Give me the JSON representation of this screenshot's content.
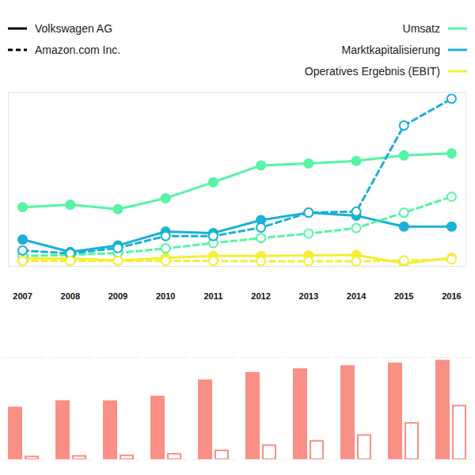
{
  "chart_data": [
    {
      "type": "line",
      "x": [
        2007,
        2008,
        2009,
        2010,
        2011,
        2012,
        2013,
        2014,
        2015,
        2016
      ],
      "xlim": [
        2006.7,
        2016.3
      ],
      "xticks": [
        2007,
        2008,
        2009,
        2010,
        2011,
        2012,
        2013,
        2014,
        2015,
        2016
      ],
      "ylim": [
        -10,
        340
      ],
      "yticks": [],
      "tick_labels": "x",
      "grid": false,
      "legend": "top",
      "groups": [
        {
          "name": "Volkswagen AG",
          "line_style": "solid",
          "marker": "filled"
        },
        {
          "name": "Amazon.com Inc.",
          "line_style": "dashed",
          "marker": "open"
        }
      ],
      "series": [
        {
          "name": "Umsatz",
          "group": "Volkswagen AG",
          "color": "#55f5a5",
          "values": [
            109,
            114,
            105,
            127,
            159,
            193,
            197,
            202,
            213,
            217
          ]
        },
        {
          "name": "Marktkapitalisierung",
          "group": "Volkswagen AG",
          "color": "#1cb0d6",
          "values": [
            44,
            19,
            32,
            60,
            57,
            83,
            98,
            92,
            70,
            70
          ]
        },
        {
          "name": "Operatives Ergebnis (EBIT)",
          "group": "Volkswagen AG",
          "color": "#f5ee3a",
          "values": [
            6,
            6,
            2,
            7,
            11,
            11,
            12,
            13,
            -4,
            7
          ]
        },
        {
          "name": "Umsatz",
          "group": "Amazon.com Inc.",
          "color": "#55f5a5",
          "values": [
            11,
            13,
            17,
            26,
            37,
            47,
            56,
            67,
            98,
            130
          ]
        },
        {
          "name": "Marktkapitalisierung",
          "group": "Amazon.com Inc.",
          "color": "#1cb0d6",
          "values": [
            22,
            16,
            27,
            51,
            51,
            68,
            98,
            100,
            273,
            327
          ]
        },
        {
          "name": "Operatives Ergebnis (EBIT)",
          "group": "Amazon.com Inc.",
          "color": "#f5ee3a",
          "values": [
            1,
            1,
            1,
            1,
            1,
            0.5,
            0.5,
            0.2,
            2,
            4
          ]
        }
      ]
    },
    {
      "type": "bar",
      "categories": [
        2007,
        2008,
        2009,
        2010,
        2011,
        2012,
        2013,
        2014,
        2015,
        2016
      ],
      "ylim": [
        0,
        650
      ],
      "yticks": [],
      "tick_labels": false,
      "grid": false,
      "color": "#fa8f86",
      "series": [
        {
          "name": "Volkswagen AG",
          "marker": "filled",
          "values": [
            329,
            370,
            369,
            399,
            502,
            550,
            573,
            593,
            610,
            627
          ]
        },
        {
          "name": "Amazon.com Inc.",
          "marker": "open",
          "values": [
            17,
            21,
            24,
            34,
            56,
            89,
            117,
            154,
            231,
            341
          ]
        }
      ]
    }
  ]
}
